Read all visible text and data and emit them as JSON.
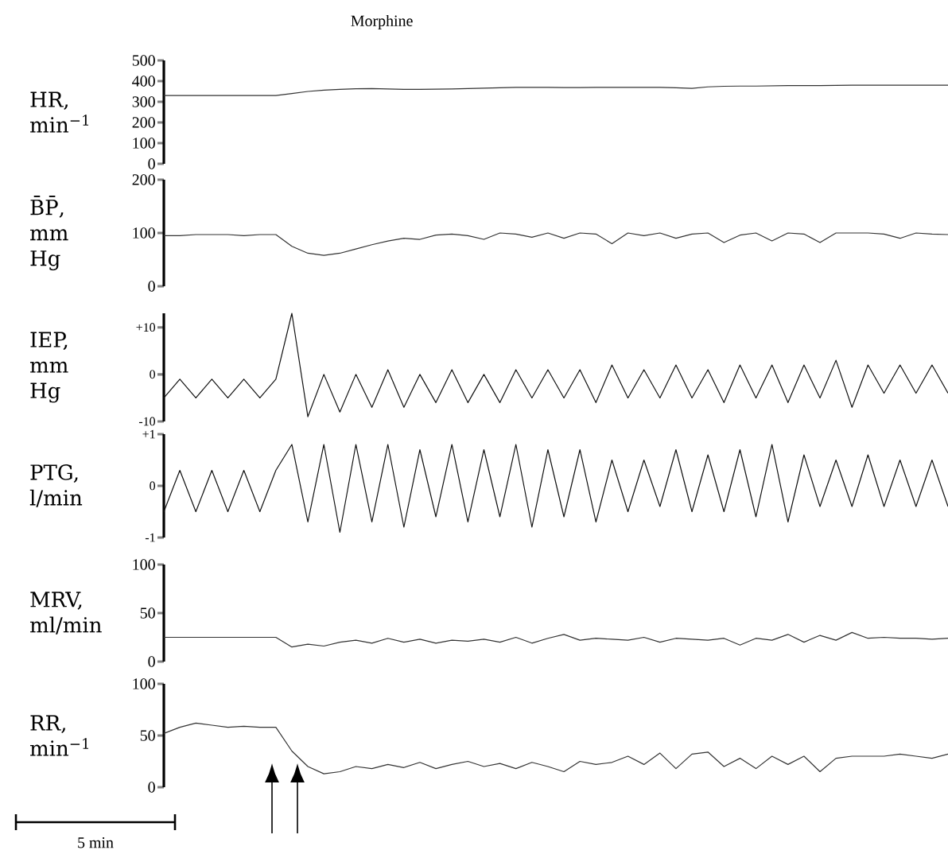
{
  "chart_data": [
    {
      "type": "line",
      "title": "Morphine",
      "ylabel": "HR, min$^{−1}$",
      "tick_labels": "y",
      "ylim": [
        0,
        500
      ],
      "yticks": [
        0,
        100,
        200,
        300,
        400,
        500
      ],
      "categories": [
        null,
        null,
        null,
        null,
        null,
        null,
        null,
        null,
        null,
        null,
        null,
        null,
        null,
        null,
        null,
        null,
        null,
        null,
        null,
        null,
        null,
        null,
        null,
        null,
        null,
        null,
        null,
        null,
        null,
        null,
        null,
        null,
        null,
        null,
        null,
        null,
        null,
        null,
        null,
        null,
        null,
        null,
        null,
        null,
        null,
        null,
        null,
        null,
        null,
        null
      ],
      "series": [
        {
          "color": "#333333",
          "values": [
            330,
            330,
            330,
            330,
            330,
            330,
            330,
            330,
            340,
            350,
            356,
            360,
            363,
            364,
            362,
            360,
            360,
            361,
            362,
            364,
            366,
            368,
            370,
            370,
            370,
            369,
            369,
            370,
            370,
            370,
            370,
            370,
            368,
            365,
            372,
            375,
            376,
            376,
            377,
            378,
            378,
            378,
            379,
            380,
            380,
            380,
            380,
            380,
            380,
            380
          ]
        }
      ]
    },
    {
      "type": "line",
      "ylabel": "B̄P̄, mm Hg",
      "tick_labels": "y",
      "ylim": [
        0,
        200
      ],
      "yticks": [
        0,
        100,
        200
      ],
      "categories": [
        null,
        null,
        null,
        null,
        null,
        null,
        null,
        null,
        null,
        null,
        null,
        null,
        null,
        null,
        null,
        null,
        null,
        null,
        null,
        null,
        null,
        null,
        null,
        null,
        null,
        null,
        null,
        null,
        null,
        null,
        null,
        null,
        null,
        null,
        null,
        null,
        null,
        null,
        null,
        null,
        null,
        null,
        null,
        null,
        null,
        null,
        null,
        null,
        null,
        null
      ],
      "series": [
        {
          "color": "#333333",
          "values": [
            95,
            95,
            97,
            97,
            97,
            95,
            97,
            97,
            75,
            62,
            58,
            62,
            70,
            78,
            85,
            90,
            88,
            96,
            98,
            95,
            88,
            100,
            98,
            92,
            100,
            90,
            100,
            98,
            80,
            100,
            95,
            100,
            90,
            98,
            100,
            82,
            96,
            100,
            85,
            100,
            98,
            82,
            100,
            100,
            100,
            98,
            90,
            100,
            98,
            97
          ]
        }
      ]
    },
    {
      "type": "line",
      "ylabel": "IEP, mm Hg",
      "tick_labels": "y",
      "ylim": [
        -10,
        13
      ],
      "yticks": [
        -10,
        0,
        {
          "value": 10,
          "label": "+10"
        }
      ],
      "categories": [
        null,
        null,
        null,
        null,
        null,
        null,
        null,
        null,
        null,
        null,
        null,
        null,
        null,
        null,
        null,
        null,
        null,
        null,
        null,
        null,
        null,
        null,
        null,
        null,
        null,
        null,
        null,
        null,
        null,
        null,
        null,
        null,
        null,
        null,
        null,
        null,
        null,
        null,
        null,
        null,
        null,
        null,
        null,
        null,
        null,
        null,
        null,
        null,
        null,
        null
      ],
      "series": [
        {
          "color": "#111111",
          "values": [
            -5,
            -1,
            -5,
            -1,
            -5,
            -1,
            -5,
            -1,
            13,
            -9,
            0,
            -8,
            0,
            -7,
            1,
            -7,
            0,
            -6,
            1,
            -6,
            0,
            -6,
            1,
            -5,
            1,
            -5,
            1,
            -6,
            2,
            -5,
            1,
            -5,
            2,
            -5,
            1,
            -6,
            2,
            -5,
            2,
            -6,
            2,
            -5,
            3,
            -7,
            2,
            -4,
            2,
            -4,
            2,
            -4
          ]
        }
      ]
    },
    {
      "type": "line",
      "ylabel": "PTG, l/min",
      "tick_labels": "y",
      "ylim": [
        -1,
        1
      ],
      "yticks": [
        -1,
        0,
        {
          "value": 1,
          "label": "+1"
        }
      ],
      "categories": [
        null,
        null,
        null,
        null,
        null,
        null,
        null,
        null,
        null,
        null,
        null,
        null,
        null,
        null,
        null,
        null,
        null,
        null,
        null,
        null,
        null,
        null,
        null,
        null,
        null,
        null,
        null,
        null,
        null,
        null,
        null,
        null,
        null,
        null,
        null,
        null,
        null,
        null,
        null,
        null,
        null,
        null,
        null,
        null,
        null,
        null,
        null,
        null,
        null,
        null
      ],
      "series": [
        {
          "color": "#111111",
          "values": [
            -0.5,
            0.3,
            -0.5,
            0.3,
            -0.5,
            0.3,
            -0.5,
            0.3,
            0.8,
            -0.7,
            0.8,
            -0.9,
            0.8,
            -0.7,
            0.8,
            -0.8,
            0.7,
            -0.6,
            0.8,
            -0.7,
            0.7,
            -0.6,
            0.8,
            -0.8,
            0.7,
            -0.6,
            0.7,
            -0.7,
            0.5,
            -0.5,
            0.5,
            -0.4,
            0.7,
            -0.5,
            0.6,
            -0.5,
            0.7,
            -0.6,
            0.8,
            -0.7,
            0.6,
            -0.4,
            0.5,
            -0.4,
            0.6,
            -0.4,
            0.5,
            -0.4,
            0.5,
            -0.4
          ]
        }
      ]
    },
    {
      "type": "line",
      "ylabel": "MRV, ml/min",
      "tick_labels": "y",
      "ylim": [
        0,
        100
      ],
      "yticks": [
        0,
        50,
        100
      ],
      "categories": [
        null,
        null,
        null,
        null,
        null,
        null,
        null,
        null,
        null,
        null,
        null,
        null,
        null,
        null,
        null,
        null,
        null,
        null,
        null,
        null,
        null,
        null,
        null,
        null,
        null,
        null,
        null,
        null,
        null,
        null,
        null,
        null,
        null,
        null,
        null,
        null,
        null,
        null,
        null,
        null,
        null,
        null,
        null,
        null,
        null,
        null,
        null,
        null,
        null,
        null
      ],
      "series": [
        {
          "color": "#333333",
          "values": [
            25,
            25,
            25,
            25,
            25,
            25,
            25,
            25,
            15,
            18,
            16,
            20,
            22,
            19,
            24,
            20,
            23,
            19,
            22,
            21,
            23,
            20,
            25,
            19,
            24,
            28,
            22,
            24,
            23,
            22,
            25,
            20,
            24,
            23,
            22,
            24,
            17,
            24,
            22,
            28,
            20,
            27,
            22,
            30,
            24,
            25,
            24,
            24,
            23,
            24
          ]
        }
      ]
    },
    {
      "type": "line",
      "ylabel": "RR, min$^{−1}$",
      "tick_labels": "y",
      "ylim": [
        0,
        100
      ],
      "yticks": [
        0,
        50,
        100
      ],
      "annotations": [
        "5 min"
      ],
      "categories": [
        null,
        null,
        null,
        null,
        null,
        null,
        null,
        null,
        null,
        null,
        null,
        null,
        null,
        null,
        null,
        null,
        null,
        null,
        null,
        null,
        null,
        null,
        null,
        null,
        null,
        null,
        null,
        null,
        null,
        null,
        null,
        null,
        null,
        null,
        null,
        null,
        null,
        null,
        null,
        null,
        null,
        null,
        null,
        null,
        null,
        null,
        null,
        null,
        null,
        null
      ],
      "series": [
        {
          "color": "#333333",
          "values": [
            52,
            58,
            62,
            60,
            58,
            59,
            58,
            58,
            35,
            20,
            13,
            15,
            20,
            18,
            22,
            19,
            24,
            18,
            22,
            25,
            20,
            23,
            18,
            24,
            20,
            15,
            25,
            22,
            24,
            30,
            22,
            33,
            18,
            32,
            34,
            20,
            28,
            18,
            30,
            22,
            30,
            15,
            28,
            30,
            30,
            30,
            32,
            30,
            28,
            32
          ]
        }
      ]
    }
  ]
}
